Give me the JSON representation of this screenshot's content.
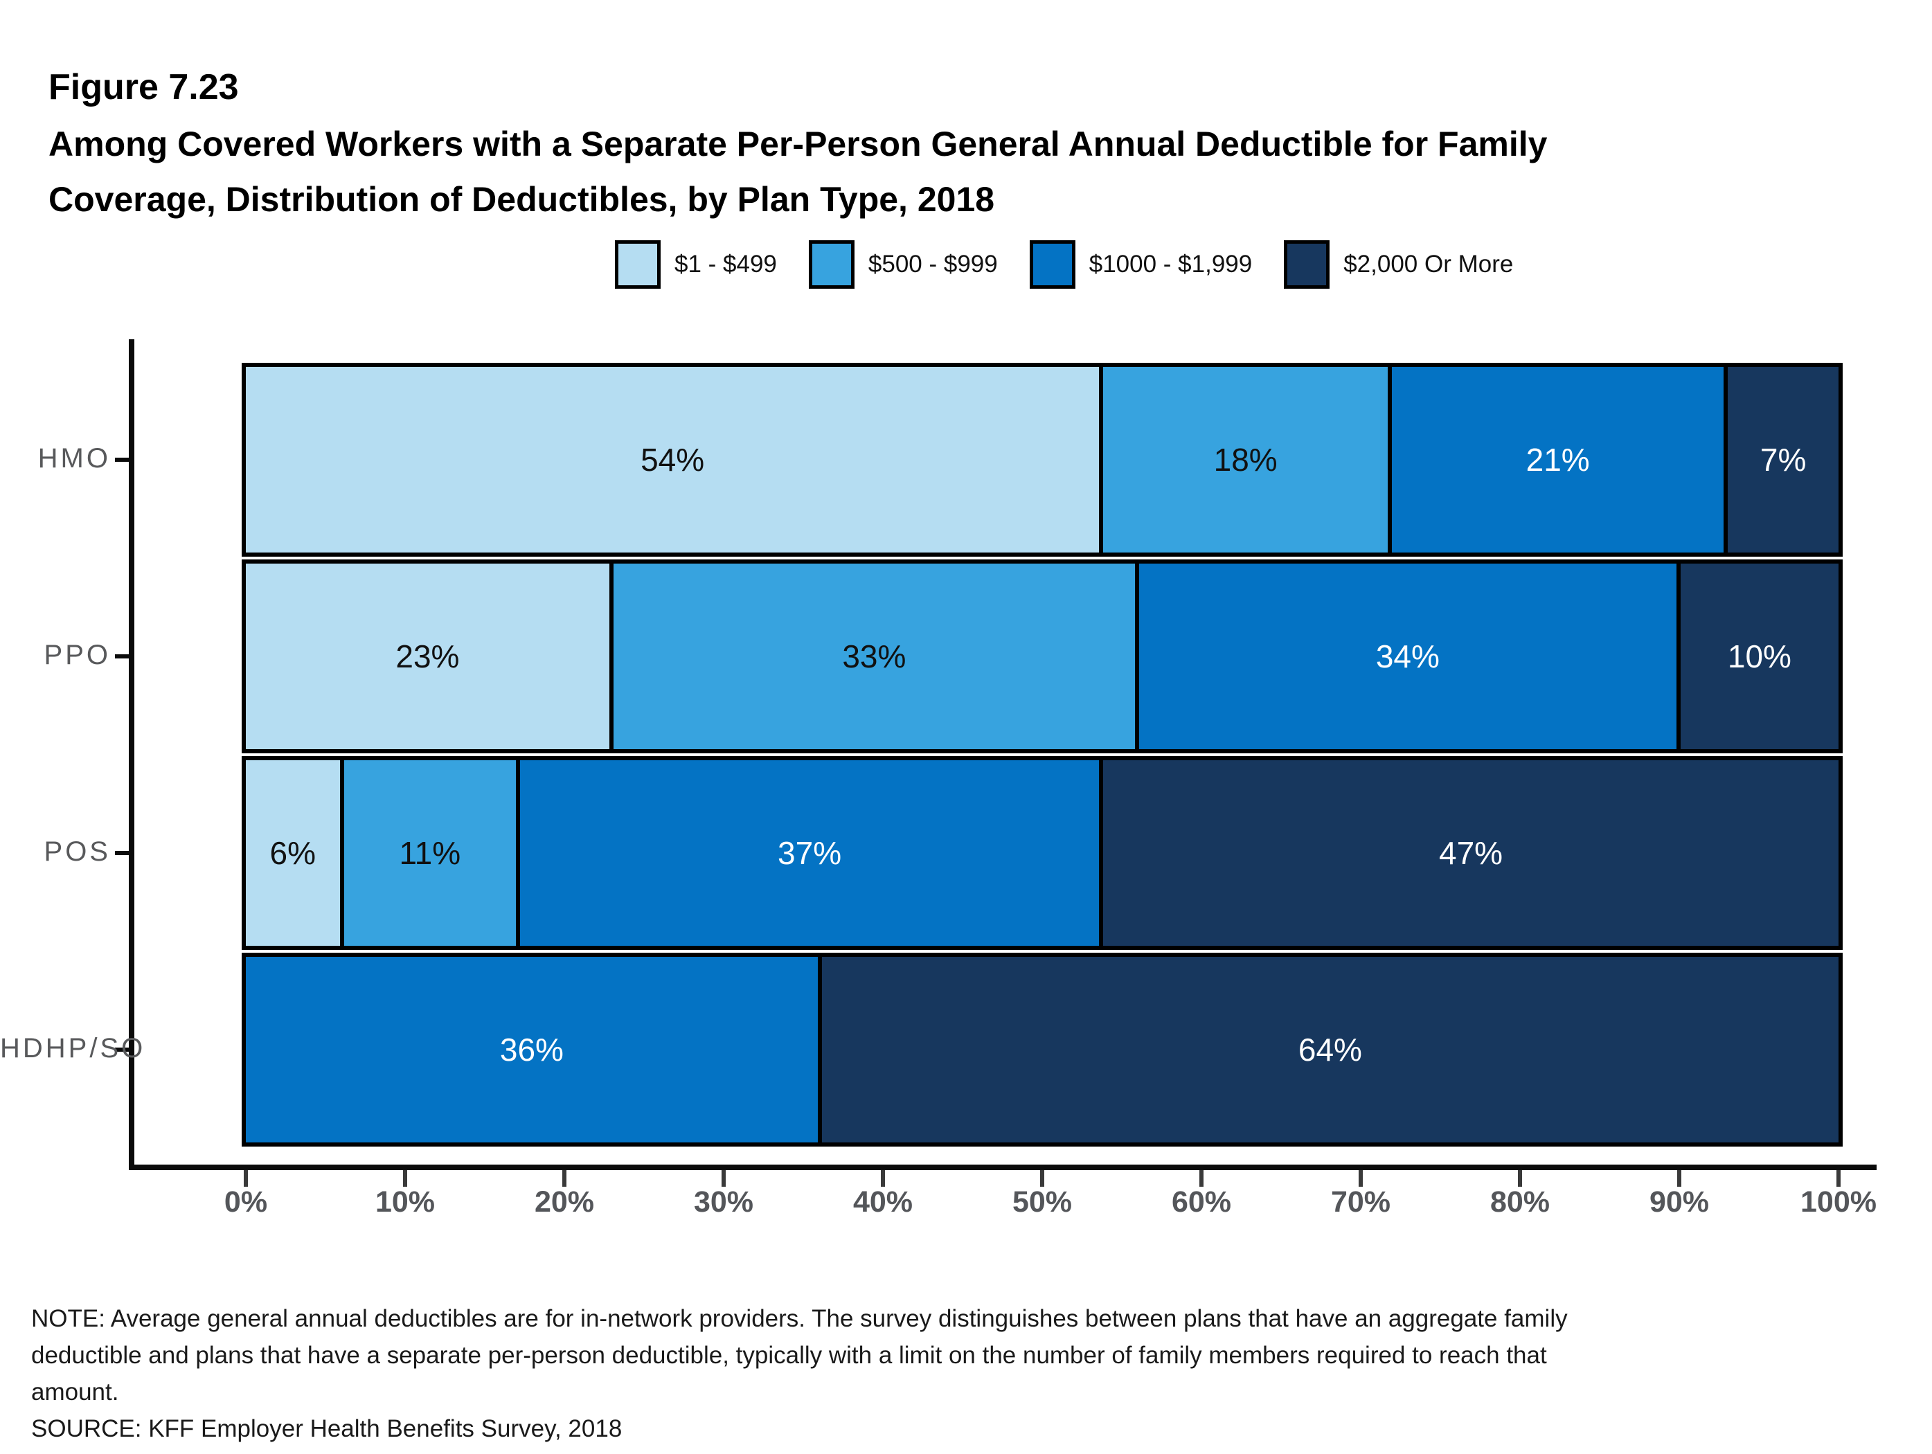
{
  "header": {
    "figure_label": "Figure 7.23",
    "title_lines": [
      "Among Covered Workers with a Separate Per-Person General Annual Deductible for Family",
      "Coverage, Distribution of Deductibles, by Plan Type, 2018"
    ]
  },
  "chart_data": {
    "type": "bar",
    "orientation": "horizontal-stacked",
    "title": "Among Covered Workers with a Separate Per-Person General Annual Deductible for Family Coverage, Distribution of Deductibles, by Plan Type, 2018",
    "categories": [
      "HMO",
      "PPO",
      "POS",
      "HDHP/SO"
    ],
    "series": [
      {
        "name": "$1 - $499",
        "color": "#B5DDF2",
        "label_color": "#111111",
        "values": [
          54,
          23,
          6,
          0
        ]
      },
      {
        "name": "$500 - $999",
        "color": "#37A3DF",
        "label_color": "#111111",
        "values": [
          18,
          33,
          11,
          0
        ]
      },
      {
        "name": "$1000 - $1,999",
        "color": "#0473C4",
        "label_color": "#FFFFFF",
        "values": [
          21,
          34,
          37,
          36
        ]
      },
      {
        "name": "$2,000 Or More",
        "color": "#17375E",
        "label_color": "#FFFFFF",
        "values": [
          7,
          10,
          47,
          64
        ]
      }
    ],
    "x_ticks": [
      "0%",
      "10%",
      "20%",
      "30%",
      "40%",
      "50%",
      "60%",
      "70%",
      "80%",
      "90%",
      "100%"
    ],
    "xlim": [
      0,
      100
    ],
    "value_suffix": "%",
    "legend_position": "top",
    "grid": false
  },
  "notes": {
    "note": "NOTE: Average general annual deductibles are for in-network providers. The survey distinguishes between plans that have an aggregate family deductible and plans that have a separate per-person deductible, typically with a limit on the number of family members required to reach that amount.",
    "source": "SOURCE: KFF Employer Health Benefits Survey, 2018"
  }
}
